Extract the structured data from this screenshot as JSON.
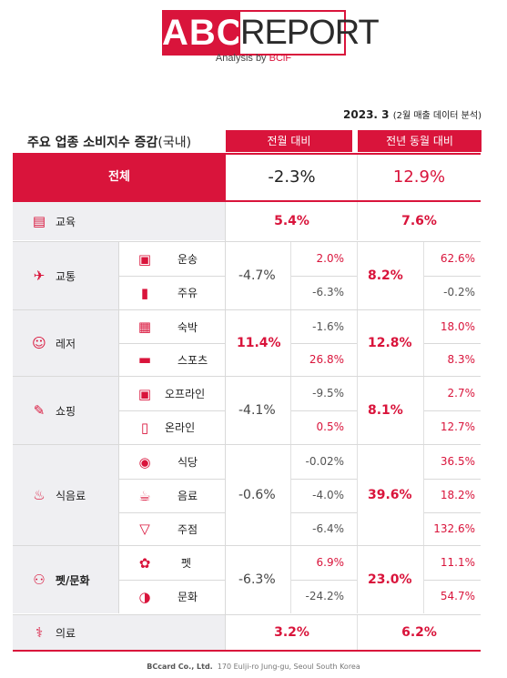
{
  "logo": {
    "abc": "ABC",
    "report": "REPORT",
    "sub_prefix": "Analysis by ",
    "sub_brand": "BCiF"
  },
  "date_main": "2023. 3",
  "date_note": "(2월 매출 데이터 분석)",
  "title_main": "주요 업종 소비지수 증감",
  "title_suffix": "(국내)",
  "headers": {
    "mom": "전월 대비",
    "yoy": "전년 동월 대비"
  },
  "total": {
    "label": "전체",
    "mom": "-2.3%",
    "yoy": "12.9%"
  },
  "education": {
    "label": "교육",
    "mom": "5.4%",
    "yoy": "7.6%"
  },
  "transport": {
    "label": "교통",
    "mom": "-4.7%",
    "yoy": "8.2%",
    "subs": [
      {
        "label": "운송",
        "mom": "2.0%",
        "yoy": "62.6%"
      },
      {
        "label": "주유",
        "mom": "-6.3%",
        "yoy": "-0.2%"
      }
    ]
  },
  "leisure": {
    "label": "레저",
    "mom": "11.4%",
    "yoy": "12.8%",
    "subs": [
      {
        "label": "숙박",
        "mom": "-1.6%",
        "yoy": "18.0%"
      },
      {
        "label": "스포츠",
        "mom": "26.8%",
        "yoy": "8.3%"
      }
    ]
  },
  "shopping": {
    "label": "쇼핑",
    "mom": "-4.1%",
    "yoy": "8.1%",
    "subs": [
      {
        "label": "오프라인",
        "mom": "-9.5%",
        "yoy": "2.7%"
      },
      {
        "label": "온라인",
        "mom": "0.5%",
        "yoy": "12.7%"
      }
    ]
  },
  "food": {
    "label": "식음료",
    "mom": "-0.6%",
    "yoy": "39.6%",
    "subs": [
      {
        "label": "식당",
        "mom": "-0.02%",
        "yoy": "36.5%"
      },
      {
        "label": "음료",
        "mom": "-4.0%",
        "yoy": "18.2%"
      },
      {
        "label": "주점",
        "mom": "-6.4%",
        "yoy": "132.6%"
      }
    ]
  },
  "pet": {
    "label": "펫/문화",
    "mom": "-6.3%",
    "yoy": "23.0%",
    "subs": [
      {
        "label": "펫",
        "mom": "6.9%",
        "yoy": "11.1%"
      },
      {
        "label": "문화",
        "mom": "-24.2%",
        "yoy": "54.7%"
      }
    ]
  },
  "medical": {
    "label": "의료",
    "mom": "3.2%",
    "yoy": "6.2%"
  },
  "footer": {
    "company": "BCcard Co., Ltd.",
    "address": "170 Eulji-ro Jung-gu, Seoul South Korea"
  },
  "colors": {
    "accent": "#d9143b",
    "panel": "#efeff2",
    "text": "#2b2b2b"
  }
}
